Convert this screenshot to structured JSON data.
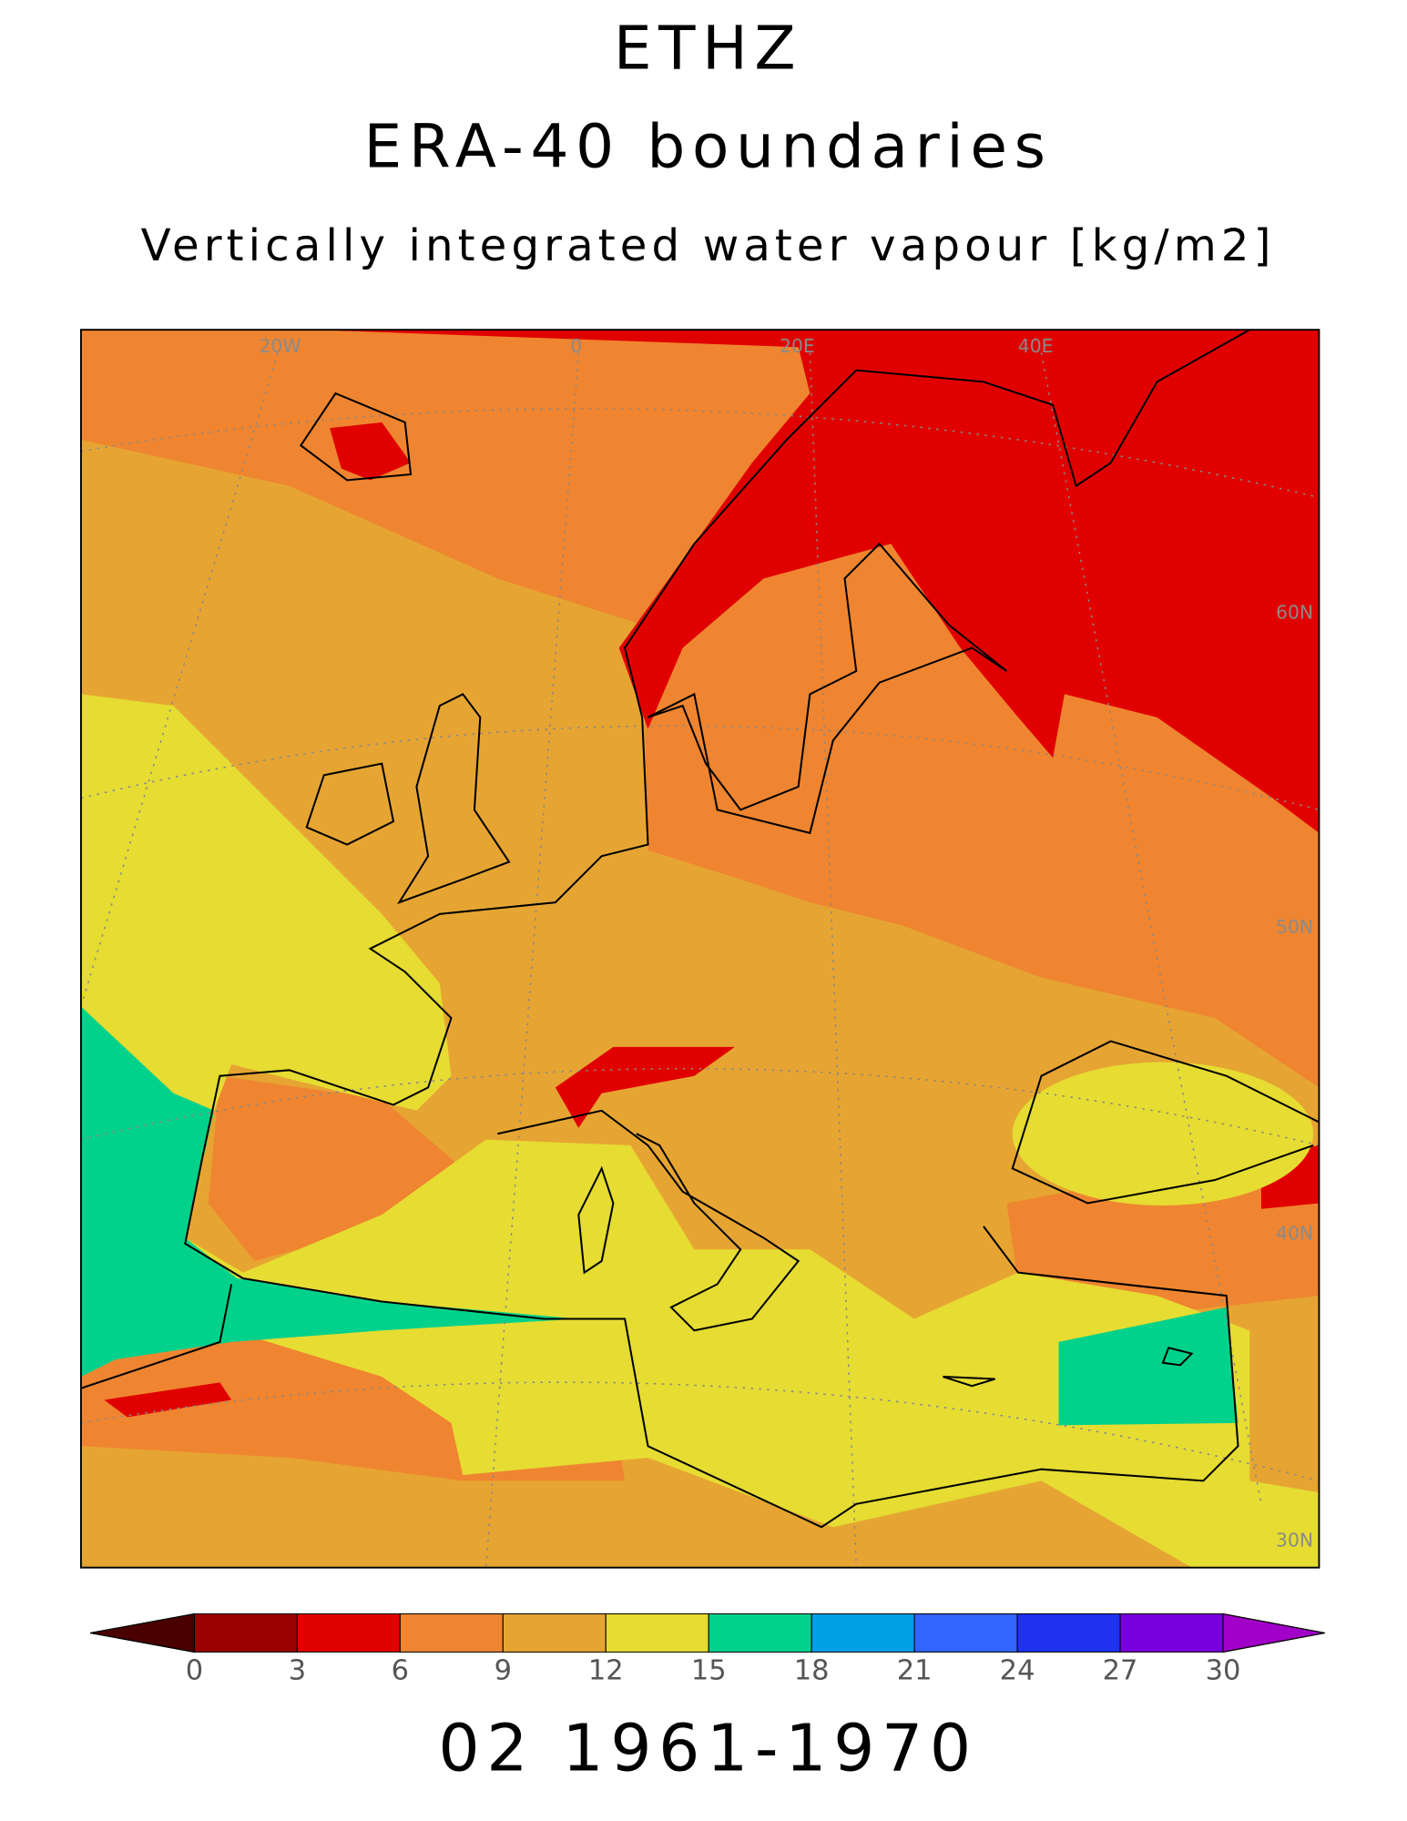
{
  "header": {
    "title": "ETHZ",
    "subtitle": "ERA-40 boundaries",
    "variable": "Vertically integrated water vapour [kg/m2]"
  },
  "map": {
    "lon_labels": [
      "20W",
      "0",
      "20E",
      "40E"
    ],
    "lat_labels": [
      "60N",
      "50N",
      "40N",
      "30N"
    ]
  },
  "colorbar": {
    "ticks": [
      0,
      3,
      6,
      9,
      12,
      15,
      18,
      21,
      24,
      27,
      30
    ],
    "colors": [
      "#4b0000",
      "#9b0000",
      "#e10000",
      "#ef8530",
      "#e6a532",
      "#e6dc32",
      "#00d28c",
      "#00a0e6",
      "#3264ff",
      "#1e32f0",
      "#7800dc",
      "#a000c8"
    ]
  },
  "footer": {
    "period": "02 1961-1970"
  }
}
